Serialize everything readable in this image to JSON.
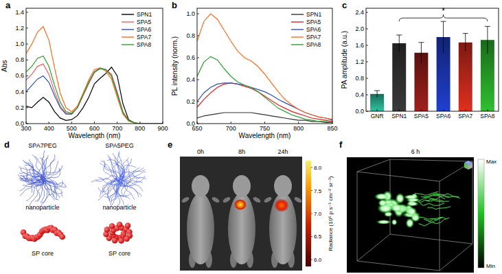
{
  "chart_data": [
    {
      "type": "line",
      "panel": "a",
      "x_label": "Wavelength (nm)",
      "y_label": "Abs",
      "x": [
        300,
        325,
        350,
        375,
        400,
        425,
        450,
        475,
        500,
        525,
        550,
        575,
        600,
        625,
        650,
        675,
        700,
        725,
        750,
        775,
        800,
        825,
        850,
        875,
        900
      ],
      "series": [
        {
          "name": "SPN1",
          "color": "#000000",
          "values": [
            0.22,
            0.2,
            0.27,
            0.33,
            0.27,
            0.15,
            0.07,
            0.04,
            0.05,
            0.1,
            0.2,
            0.33,
            0.5,
            0.57,
            0.63,
            0.71,
            0.6,
            0.25,
            0.05,
            0.01,
            0,
            0,
            0,
            0,
            0
          ]
        },
        {
          "name": "SPA5",
          "color": "#f06060",
          "values": [
            0.55,
            0.62,
            0.72,
            0.75,
            0.62,
            0.4,
            0.22,
            0.13,
            0.12,
            0.2,
            0.35,
            0.5,
            0.64,
            0.69,
            0.68,
            0.62,
            0.4,
            0.15,
            0.04,
            0.01,
            0,
            0,
            0,
            0,
            0
          ]
        },
        {
          "name": "SPA6",
          "color": "#2f4fc0",
          "values": [
            0.4,
            0.48,
            0.56,
            0.6,
            0.52,
            0.35,
            0.2,
            0.12,
            0.12,
            0.2,
            0.36,
            0.52,
            0.65,
            0.7,
            0.68,
            0.6,
            0.38,
            0.14,
            0.04,
            0.01,
            0,
            0,
            0,
            0,
            0
          ]
        },
        {
          "name": "SPA7",
          "color": "#ff6a1a",
          "values": [
            0.88,
            1.0,
            1.15,
            1.22,
            1.05,
            0.7,
            0.38,
            0.2,
            0.15,
            0.22,
            0.38,
            0.55,
            0.68,
            0.7,
            0.66,
            0.56,
            0.33,
            0.12,
            0.03,
            0.01,
            0,
            0,
            0,
            0,
            0
          ]
        },
        {
          "name": "SPA8",
          "color": "#2ca02c",
          "values": [
            0.65,
            0.72,
            0.82,
            0.85,
            0.72,
            0.48,
            0.27,
            0.15,
            0.13,
            0.2,
            0.36,
            0.52,
            0.65,
            0.69,
            0.68,
            0.6,
            0.37,
            0.14,
            0.04,
            0.01,
            0,
            0,
            0,
            0,
            0
          ]
        }
      ],
      "xlim": [
        300,
        900
      ],
      "xticks": [
        300,
        400,
        500,
        600,
        700,
        800,
        900
      ],
      "ylim": [
        0,
        1.45
      ],
      "yticks": [
        {
          "value": 0,
          "label": "0.0"
        },
        {
          "value": 0.2,
          "label": "0.2"
        },
        {
          "value": 0.4,
          "label": "0.4"
        },
        {
          "value": 0.6,
          "label": "0.6"
        },
        {
          "value": 0.8,
          "label": "0.8"
        },
        {
          "value": 1.0,
          "label": "1.0"
        },
        {
          "value": 1.2,
          "label": "1.2"
        },
        {
          "value": 1.4,
          "label": "1.4"
        }
      ],
      "legend": "upper right"
    },
    {
      "type": "line",
      "panel": "b",
      "x_label": "Wavelength (nm)",
      "y_label": "PL intensity (norm.)",
      "x": [
        650,
        660,
        670,
        680,
        690,
        700,
        710,
        720,
        730,
        740,
        750,
        760,
        770,
        780,
        790,
        800,
        810,
        820,
        830,
        840,
        850
      ],
      "series": [
        {
          "name": "SPN1",
          "color": "#333333",
          "values": [
            0.05,
            0.07,
            0.08,
            0.09,
            0.1,
            0.1,
            0.1,
            0.1,
            0.1,
            0.09,
            0.08,
            0.07,
            0.06,
            0.05,
            0.04,
            0.03,
            0.03,
            0.02,
            0.02,
            0.01,
            0.01
          ]
        },
        {
          "name": "SPA5",
          "color": "#e82020",
          "values": [
            0.15,
            0.22,
            0.28,
            0.33,
            0.36,
            0.37,
            0.36,
            0.34,
            0.32,
            0.29,
            0.25,
            0.21,
            0.17,
            0.14,
            0.11,
            0.09,
            0.07,
            0.05,
            0.04,
            0.03,
            0.02
          ]
        },
        {
          "name": "SPA6",
          "color": "#2f4fc0",
          "values": [
            0.2,
            0.28,
            0.33,
            0.36,
            0.37,
            0.37,
            0.36,
            0.35,
            0.33,
            0.31,
            0.29,
            0.26,
            0.22,
            0.19,
            0.16,
            0.13,
            0.1,
            0.08,
            0.06,
            0.05,
            0.03
          ]
        },
        {
          "name": "SPA7",
          "color": "#ff6a1a",
          "values": [
            0.75,
            0.93,
            1.0,
            0.95,
            0.85,
            0.75,
            0.66,
            0.6,
            0.57,
            0.52,
            0.45,
            0.37,
            0.29,
            0.22,
            0.17,
            0.13,
            0.1,
            0.08,
            0.06,
            0.05,
            0.04
          ]
        },
        {
          "name": "SPA8",
          "color": "#2ca02c",
          "values": [
            0.43,
            0.56,
            0.61,
            0.58,
            0.5,
            0.43,
            0.38,
            0.35,
            0.33,
            0.29,
            0.24,
            0.19,
            0.14,
            0.11,
            0.08,
            0.06,
            0.04,
            0.03,
            0.02,
            0.02,
            0.01
          ]
        }
      ],
      "xlim": [
        650,
        850
      ],
      "xticks": [
        650,
        700,
        750,
        800,
        850
      ],
      "ylim": [
        0,
        1.05
      ],
      "yticks": [
        {
          "value": 0,
          "label": "0.0"
        },
        {
          "value": 0.2,
          "label": "0.2"
        },
        {
          "value": 0.4,
          "label": "0.4"
        },
        {
          "value": 0.6,
          "label": "0.6"
        },
        {
          "value": 0.8,
          "label": "0.8"
        },
        {
          "value": 1.0,
          "label": "1.0"
        }
      ],
      "legend": "upper right"
    },
    {
      "type": "bar",
      "panel": "c",
      "y_label": "PA amplitude (a.u.)",
      "annotation": "*",
      "categories": [
        "GNR",
        "SPN1",
        "SPA5",
        "SPA6",
        "SPA7",
        "SPA8"
      ],
      "values": [
        0.42,
        1.65,
        1.42,
        1.8,
        1.67,
        1.73
      ],
      "errors": [
        0.08,
        0.2,
        0.25,
        0.38,
        0.22,
        0.33
      ],
      "colors": [
        "#2ec4a0",
        "#3a3a3a",
        "#a0201c",
        "#2040d0",
        "#e03020",
        "#30c030"
      ],
      "ylim": [
        0,
        2.5
      ],
      "yticks": [
        {
          "value": 0,
          "label": "0.0"
        },
        {
          "value": 0.4,
          "label": "0.4"
        },
        {
          "value": 0.8,
          "label": "0.8"
        },
        {
          "value": 1.2,
          "label": "1.2"
        },
        {
          "value": 1.6,
          "label": "1.6"
        },
        {
          "value": 2.0,
          "label": "2.0"
        },
        {
          "value": 2.4,
          "label": "2.4"
        }
      ]
    }
  ],
  "panels": [
    {
      "label": "d",
      "structures": [
        {
          "name": "SPA7PEG",
          "parts": [
            "nanoparticle",
            "SP core"
          ]
        },
        {
          "name": "SPA5PEG",
          "parts": [
            "nanoparticle",
            "SP core"
          ]
        }
      ]
    },
    {
      "label": "e",
      "times": [
        "0h",
        "8h",
        "24h"
      ],
      "colorbar": {
        "title": "Radiance (10⁶ p s⁻¹ cm⁻² sr⁻¹)",
        "range": [
          5.85,
          8.15
        ],
        "ticks": [
          {
            "value": 6,
            "label": "6.0"
          },
          {
            "value": 6.5,
            "label": "6.5"
          },
          {
            "value": 7,
            "label": "7.0"
          },
          {
            "value": 7.5,
            "label": "7.5"
          },
          {
            "value": 8,
            "label": "8.0"
          }
        ]
      }
    },
    {
      "label": "f",
      "time": "6 h",
      "colorbar": {
        "max": "Max",
        "min": "Min"
      }
    }
  ]
}
